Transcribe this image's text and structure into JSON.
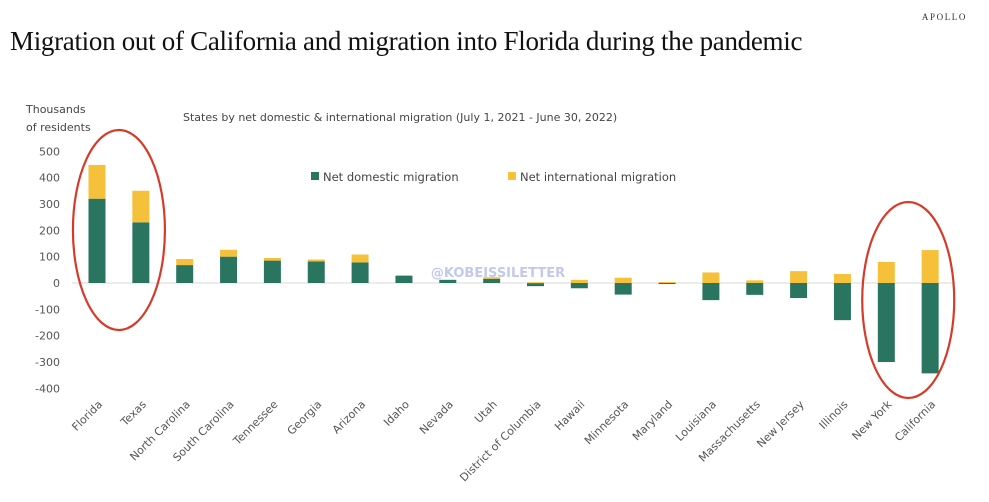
{
  "brand": "APOLLO",
  "title": "Migration out of California and migration into Florida during the pandemic",
  "watermark": "@KOBEISSILETTER",
  "colors": {
    "domestic": "#2a7560",
    "international": "#f5c03a",
    "highlight": "#d63b2a",
    "axis": "#d9d9d9"
  },
  "chart_data": {
    "type": "bar",
    "stacked": true,
    "title": "States by net domestic & international migration (July 1, 2021 - June 30, 2022)",
    "ylabel": [
      "Thousands",
      "of residents"
    ],
    "xlabel": "",
    "ylim": [
      -400,
      500
    ],
    "yticks": [
      500,
      400,
      300,
      200,
      100,
      0,
      -100,
      -200,
      -300,
      -400
    ],
    "grid": false,
    "legend": "top-center",
    "categories": [
      "Florida",
      "Texas",
      "North Carolina",
      "South Carolina",
      "Tennessee",
      "Georgia",
      "Arizona",
      "Idaho",
      "Nevada",
      "Utah",
      "District of Columbia",
      "Hawaii",
      "Minnesota",
      "Maryland",
      "Louisiana",
      "Massachusetts",
      "New Jersey",
      "Illinois",
      "New York",
      "California"
    ],
    "series": [
      {
        "name": "Net domestic migration",
        "values": [
          320,
          230,
          68,
          100,
          85,
          82,
          78,
          28,
          12,
          16,
          -12,
          -20,
          -44,
          -4,
          -65,
          -45,
          -57,
          -141,
          -300,
          -343
        ]
      },
      {
        "name": "Net international migration",
        "values": [
          128,
          120,
          23,
          26,
          10,
          7,
          30,
          0,
          0,
          6,
          3,
          12,
          20,
          4,
          40,
          10,
          45,
          34,
          80,
          125
        ]
      }
    ],
    "annotations": [
      {
        "type": "ellipse",
        "around": [
          "Florida",
          "Texas"
        ]
      },
      {
        "type": "ellipse",
        "around": [
          "New York",
          "California"
        ]
      }
    ]
  }
}
